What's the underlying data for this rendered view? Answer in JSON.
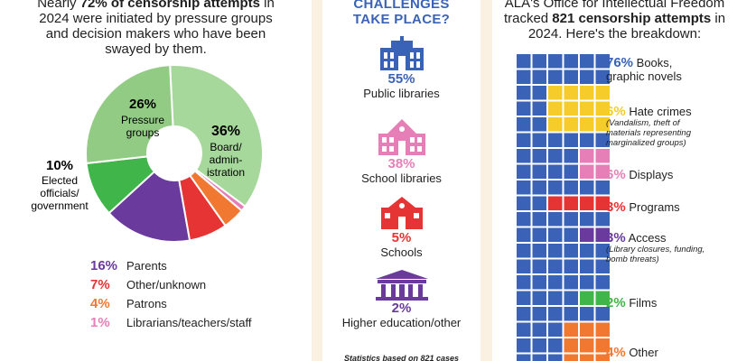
{
  "left_panel": {
    "intro_a": "Nearly ",
    "intro_b": "72% of censorship attempts",
    "intro_c": " in 2024 were initiated by pressure groups and decision makers who have been swayed by them."
  },
  "middle_panel": {
    "title_line1": "CHALLENGES",
    "title_line2": "TAKE PLACE?",
    "note": "Statistics based on 821 cases",
    "venues": [
      {
        "pct": "55%",
        "label": "Public libraries",
        "color": "#3a63b8",
        "icon": "public-library-icon"
      },
      {
        "pct": "38%",
        "label": "School libraries",
        "color": "#e67fb8",
        "icon": "school-library-icon"
      },
      {
        "pct": "5%",
        "label": "Schools",
        "color": "#e63333",
        "icon": "school-icon"
      },
      {
        "pct": "2%",
        "label": "Higher education/other",
        "color": "#6a3a9c",
        "icon": "higher-education-icon"
      }
    ]
  },
  "right_panel": {
    "intro_a": "ALA's Office for Intellectual Freedom tracked ",
    "intro_b": "821 censorship attempts",
    "intro_c": " in 2024. Here's the breakdown:"
  },
  "chart_data": [
    {
      "type": "pie",
      "title": "",
      "slices": [
        {
          "pct": "36%",
          "value": 36,
          "label_line1": "Board/",
          "label_line2": "admin-",
          "label_line3": "istration",
          "color": "#a6d89b"
        },
        {
          "pct": "1%",
          "value": 1,
          "label": "Librarians/teachers/staff",
          "color": "#e67fb8"
        },
        {
          "pct": "4%",
          "value": 4,
          "label": "Patrons",
          "color": "#f07830"
        },
        {
          "pct": "7%",
          "value": 7,
          "label": "Other/unknown",
          "color": "#e63333"
        },
        {
          "pct": "16%",
          "value": 16,
          "label": "Parents",
          "color": "#6a3a9c"
        },
        {
          "pct": "10%",
          "value": 10,
          "label_line1": "Elected",
          "label_line2": "officials/",
          "label_line3": "government",
          "color": "#3fb54a"
        },
        {
          "pct": "26%",
          "value": 26,
          "label_line1": "Pressure",
          "label_line2": "groups",
          "color": "#92cc84"
        }
      ]
    },
    {
      "type": "bar",
      "title": "",
      "categories": [
        {
          "pct": "76%",
          "value": 76,
          "label": "Books,",
          "label2": "graphic novels",
          "sub": "",
          "color": "#3a63b8"
        },
        {
          "pct": "6%",
          "value": 6,
          "label": "Hate crimes",
          "label2": "",
          "sub": "(Vandalism, theft of materials representing marginalized groups)",
          "color": "#f5cc2a"
        },
        {
          "pct": "6%",
          "value": 6,
          "label": "Displays",
          "label2": "",
          "sub": "",
          "color": "#e67fb8"
        },
        {
          "pct": "3%",
          "value": 3,
          "label": "Programs",
          "label2": "",
          "sub": "",
          "color": "#e63333"
        },
        {
          "pct": "3%",
          "value": 3,
          "label": "Access",
          "label2": "",
          "sub": "(Library closures, funding, bomb threats)",
          "color": "#6a3a9c"
        },
        {
          "pct": "2%",
          "value": 2,
          "label": "Films",
          "label2": "",
          "sub": "",
          "color": "#3fb54a"
        },
        {
          "pct": "4%",
          "value": 4,
          "label": "Other",
          "label2": "",
          "sub": "",
          "color": "#f07830"
        }
      ]
    }
  ]
}
